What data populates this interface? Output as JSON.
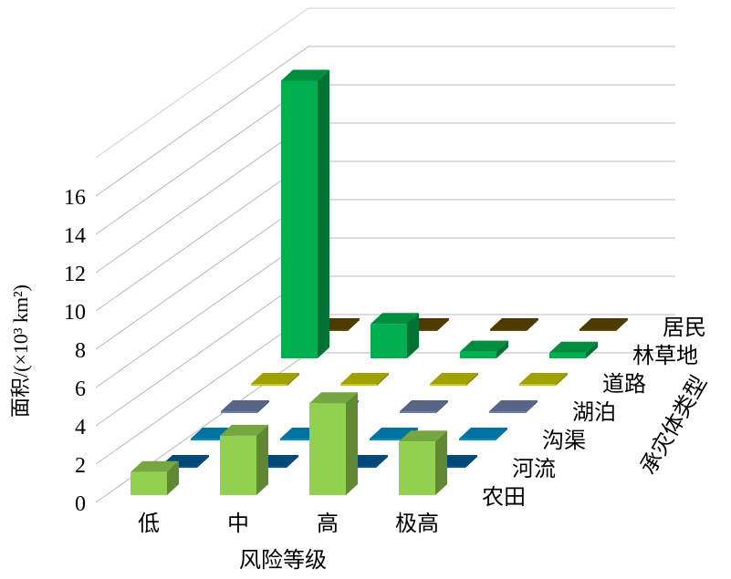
{
  "chart_data": {
    "type": "bar",
    "subtype": "3d-column",
    "xlabel": "风险等级",
    "ylabel": "面积/(×10³ km²)",
    "zlabel": "承灾体类型",
    "categories": [
      "低",
      "中",
      "高",
      "极高"
    ],
    "ylim": [
      0,
      18
    ],
    "yticks": [
      "0",
      "2",
      "4",
      "6",
      "8",
      "10",
      "12",
      "14",
      "16"
    ],
    "grid": true,
    "series": [
      {
        "name": "农田",
        "values": [
          1.2,
          3.1,
          4.8,
          2.8
        ],
        "color": "#92d050"
      },
      {
        "name": "河流",
        "values": [
          0,
          0,
          0,
          0
        ],
        "color": "#005a96"
      },
      {
        "name": "沟渠",
        "values": [
          0,
          0,
          0,
          0
        ],
        "color": "#0090c8"
      },
      {
        "name": "湖泊",
        "values": [
          0,
          0,
          0,
          0
        ],
        "color": "#6d7fa8"
      },
      {
        "name": "道路",
        "values": [
          0,
          0,
          0,
          0
        ],
        "color": "#c8c800"
      },
      {
        "name": "林草地",
        "values": [
          14.5,
          1.8,
          0.35,
          0.3
        ],
        "color": "#00b050"
      },
      {
        "name": "居民",
        "values": [
          0,
          0,
          0,
          0
        ],
        "color": "#604800"
      }
    ]
  }
}
